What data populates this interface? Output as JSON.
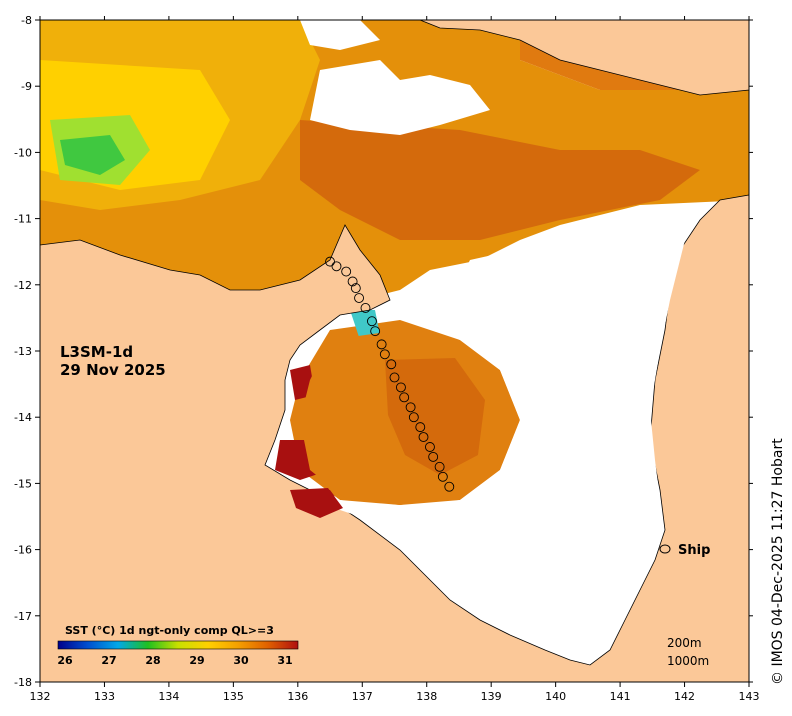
{
  "map": {
    "product": "L3SM-1d",
    "date": "29 Nov 2025",
    "x_ticks": [
      "132",
      "133",
      "134",
      "135",
      "136",
      "137",
      "138",
      "139",
      "140",
      "141",
      "142",
      "143"
    ],
    "y_ticks": [
      "-8",
      "-9",
      "-10",
      "-11",
      "-12",
      "-13",
      "-14",
      "-15",
      "-16",
      "-17",
      "-18"
    ],
    "lon_range": [
      132,
      143
    ],
    "lat_range": [
      -18,
      -8
    ],
    "colorbar": {
      "title": "SST (°C) 1d ngt-only comp QL>=3",
      "ticks": [
        "26",
        "27",
        "28",
        "29",
        "30",
        "31"
      ],
      "colors": [
        "#00008b",
        "#0050d0",
        "#00a8e8",
        "#20c020",
        "#c8e000",
        "#ffd000",
        "#f5a000",
        "#e06000",
        "#b01010"
      ]
    },
    "legend": {
      "ship_label": "Ship"
    },
    "depth_contours": {
      "shallow": "200m",
      "deep": "1000m"
    },
    "credit": "© IMOS 04-Dec-2025 11:27 Hobart",
    "colors": {
      "land": "#fbc898",
      "no_data": "#ffffff",
      "sst_warm": "#d86a10",
      "sst_hot": "#a81010",
      "sst_cool": "#40d040"
    },
    "ship_track": [
      [
        136.5,
        -11.65
      ],
      [
        136.6,
        -11.72
      ],
      [
        136.75,
        -11.8
      ],
      [
        136.85,
        -11.95
      ],
      [
        136.9,
        -12.05
      ],
      [
        136.95,
        -12.2
      ],
      [
        137.05,
        -12.35
      ],
      [
        137.15,
        -12.55
      ],
      [
        137.2,
        -12.7
      ],
      [
        137.3,
        -12.9
      ],
      [
        137.35,
        -13.05
      ],
      [
        137.45,
        -13.2
      ],
      [
        137.5,
        -13.4
      ],
      [
        137.6,
        -13.55
      ],
      [
        137.65,
        -13.7
      ],
      [
        137.75,
        -13.85
      ],
      [
        137.8,
        -14.0
      ],
      [
        137.9,
        -14.15
      ],
      [
        137.95,
        -14.3
      ],
      [
        138.05,
        -14.45
      ],
      [
        138.1,
        -14.6
      ],
      [
        138.2,
        -14.75
      ],
      [
        138.25,
        -14.9
      ],
      [
        138.35,
        -15.05
      ]
    ]
  }
}
